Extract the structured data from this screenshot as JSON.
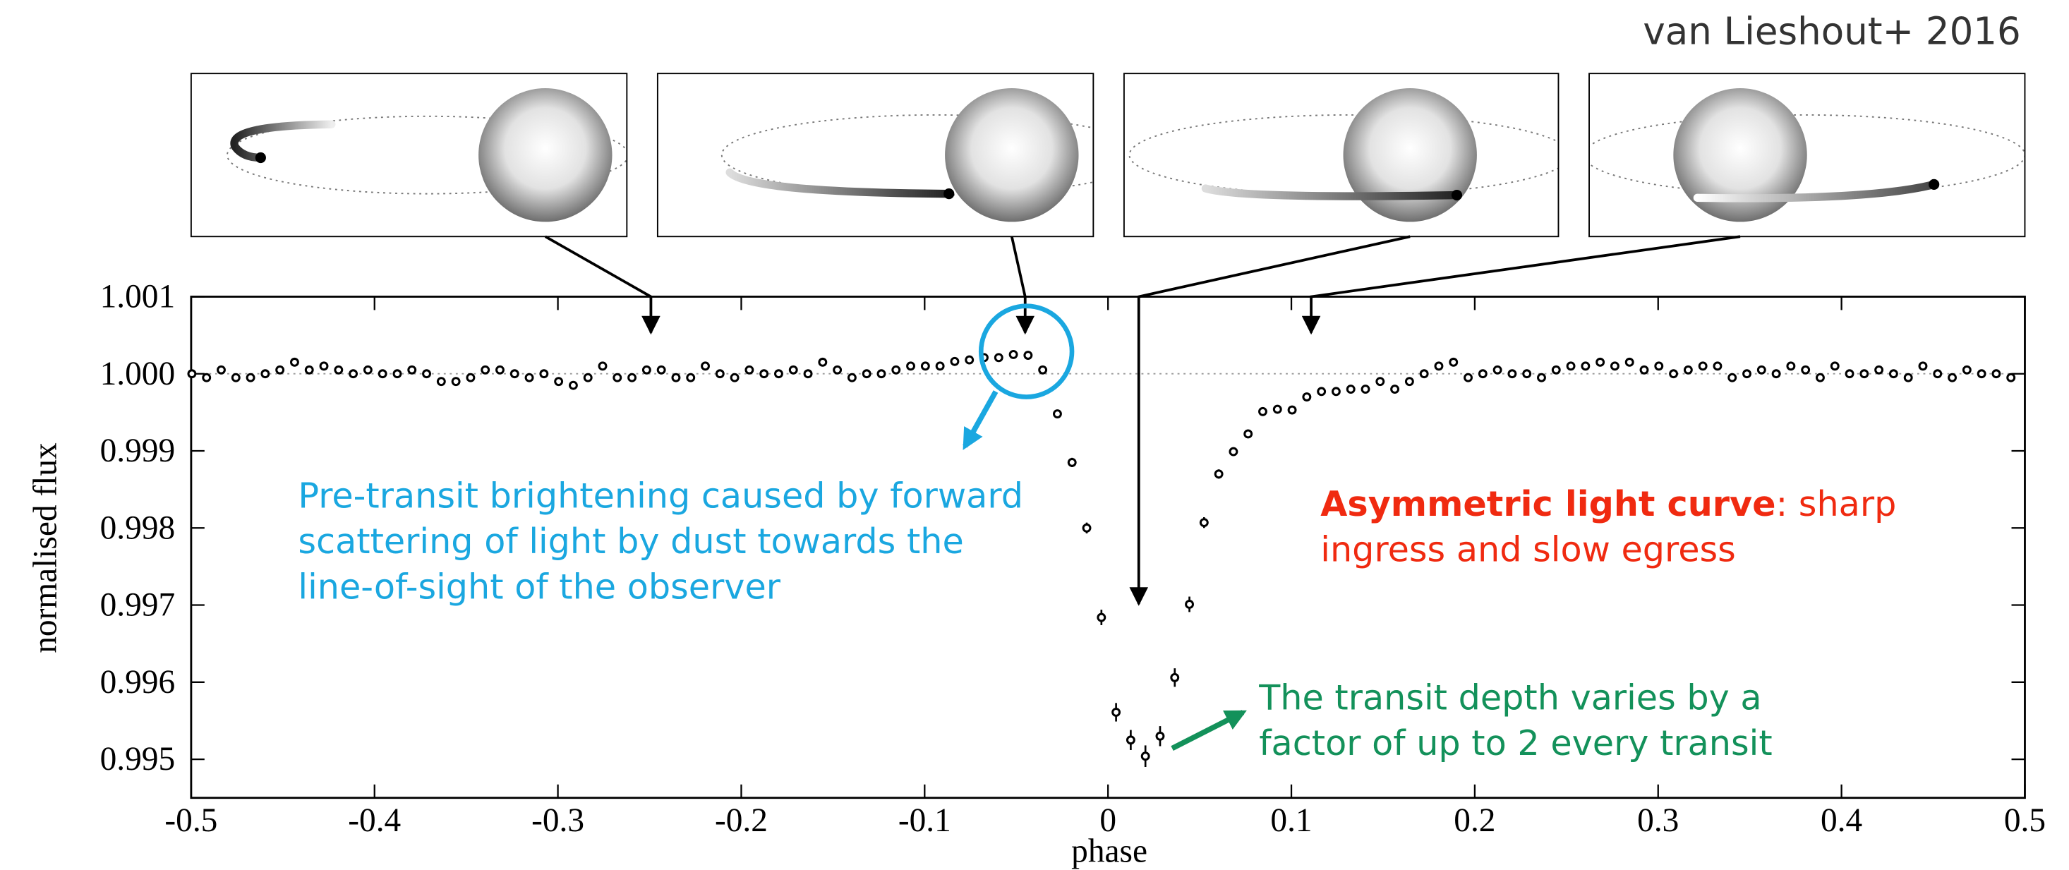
{
  "chart_data": {
    "type": "scatter",
    "source": "van Lieshout+ 2016",
    "xlabel": "phase",
    "ylabel": "normalised flux",
    "xlim": [
      -0.5,
      0.5
    ],
    "ylim": [
      0.9945,
      1.001
    ],
    "xticks": [
      -0.5,
      -0.4,
      -0.3,
      -0.2,
      -0.1,
      0,
      0.1,
      0.2,
      0.3,
      0.4,
      0.5
    ],
    "yticks": [
      0.995,
      0.996,
      0.997,
      0.998,
      0.999,
      {
        "value": 1,
        "label": "1.000"
      },
      1.001
    ],
    "reference_line": 1,
    "color": "#000000",
    "x": [
      -0.4996,
      -0.4916,
      -0.4836,
      -0.4756,
      -0.4676,
      -0.4596,
      -0.4516,
      -0.4436,
      -0.4356,
      -0.4276,
      -0.4196,
      -0.4116,
      -0.4036,
      -0.3956,
      -0.3876,
      -0.3796,
      -0.3716,
      -0.3636,
      -0.3556,
      -0.3476,
      -0.3396,
      -0.3316,
      -0.3236,
      -0.3156,
      -0.3076,
      -0.2996,
      -0.2916,
      -0.2836,
      -0.2756,
      -0.2676,
      -0.2596,
      -0.2516,
      -0.2436,
      -0.2356,
      -0.2276,
      -0.2196,
      -0.2116,
      -0.2036,
      -0.1956,
      -0.1876,
      -0.1796,
      -0.1716,
      -0.1636,
      -0.1556,
      -0.1476,
      -0.1396,
      -0.1316,
      -0.1236,
      -0.1156,
      -0.1076,
      -0.0996,
      -0.0916,
      -0.0836,
      -0.0756,
      -0.0676,
      -0.0596,
      -0.0516,
      -0.0436,
      -0.0356,
      -0.0276,
      -0.0196,
      -0.0116,
      -0.0036,
      0.0044,
      0.0124,
      0.0204,
      0.0284,
      0.0364,
      0.0444,
      0.0524,
      0.0604,
      0.0684,
      0.0764,
      0.0844,
      0.0924,
      0.1004,
      0.1084,
      0.1164,
      0.1244,
      0.1324,
      0.1404,
      0.1484,
      0.1564,
      0.1644,
      0.1724,
      0.1804,
      0.1884,
      0.1964,
      0.2044,
      0.2124,
      0.2204,
      0.2284,
      0.2364,
      0.2444,
      0.2524,
      0.2604,
      0.2684,
      0.2764,
      0.2844,
      0.2924,
      0.3004,
      0.3084,
      0.3164,
      0.3244,
      0.3324,
      0.3404,
      0.3484,
      0.3564,
      0.3644,
      0.3724,
      0.3804,
      0.3884,
      0.3964,
      0.4044,
      0.4124,
      0.4204,
      0.4284,
      0.4364,
      0.4444,
      0.4524,
      0.4604,
      0.4684,
      0.4764,
      0.4844,
      0.4924
    ],
    "values": [
      1.0,
      0.99995,
      1.00005,
      0.99995,
      0.99995,
      1.0,
      1.00005,
      1.00015,
      1.00005,
      1.0001,
      1.00005,
      1.0,
      1.00005,
      1.0,
      1.0,
      1.00005,
      1.0,
      0.9999,
      0.9999,
      0.99995,
      1.00005,
      1.00005,
      1.0,
      0.99995,
      1.0,
      0.9999,
      0.99985,
      0.99995,
      1.0001,
      0.99995,
      0.99995,
      1.00005,
      1.00005,
      0.99995,
      0.99995,
      1.0001,
      1.0,
      0.99995,
      1.00005,
      1.0,
      1.0,
      1.00005,
      1.0,
      1.00015,
      1.00005,
      0.99995,
      1.0,
      1.0,
      1.00005,
      1.0001,
      1.0001,
      1.0001,
      1.00016,
      1.00018,
      1.00021,
      1.00021,
      1.00025,
      1.00024,
      1.00005,
      0.99948,
      0.99885,
      0.998,
      0.99684,
      0.99561,
      0.99525,
      0.99504,
      0.9953,
      0.99606,
      0.99701,
      0.99807,
      0.9987,
      0.99899,
      0.99922,
      0.99951,
      0.99954,
      0.99953,
      0.9997,
      0.99977,
      0.99977,
      0.9998,
      0.9998,
      0.9999,
      0.9998,
      0.9999,
      1.0,
      1.0001,
      1.00015,
      0.99995,
      1.0,
      1.00005,
      1.0,
      1.0,
      0.99995,
      1.00005,
      1.0001,
      1.0001,
      1.00015,
      1.0001,
      1.00015,
      1.00005,
      1.0001,
      1.0,
      1.00005,
      1.0001,
      1.0001,
      0.99995,
      1.0,
      1.00005,
      1.0,
      1.0001,
      1.00005,
      0.99995,
      1.0001,
      1.0,
      1.0,
      1.00005,
      1.0,
      0.99995,
      1.0001,
      1.0,
      0.99995,
      1.00005,
      1.0,
      1.0,
      0.99995
    ],
    "errors": [
      3e-05,
      3e-05,
      3e-05,
      3e-05,
      3e-05,
      3e-05,
      3e-05,
      3e-05,
      3e-05,
      3e-05,
      3e-05,
      3e-05,
      3e-05,
      3e-05,
      3e-05,
      3e-05,
      3e-05,
      3e-05,
      3e-05,
      3e-05,
      3e-05,
      3e-05,
      3e-05,
      3e-05,
      3e-05,
      3e-05,
      3e-05,
      3e-05,
      3e-05,
      3e-05,
      3e-05,
      3e-05,
      3e-05,
      3e-05,
      3e-05,
      3e-05,
      3e-05,
      3e-05,
      3e-05,
      3e-05,
      3e-05,
      3e-05,
      3e-05,
      3e-05,
      3e-05,
      3e-05,
      3e-05,
      3e-05,
      3e-05,
      3e-05,
      3e-05,
      3e-05,
      3e-05,
      3e-05,
      3e-05,
      3e-05,
      3e-05,
      3e-05,
      4e-05,
      5e-05,
      6e-05,
      7e-05,
      0.0001,
      0.00012,
      0.00013,
      0.00014,
      0.00013,
      0.00012,
      0.0001,
      7e-05,
      6e-05,
      5e-05,
      4e-05,
      3e-05,
      3e-05,
      3e-05,
      3e-05,
      3e-05,
      3e-05,
      3e-05,
      3e-05,
      3e-05,
      3e-05,
      3e-05,
      3e-05,
      3e-05,
      3e-05,
      3e-05,
      3e-05,
      3e-05,
      3e-05,
      3e-05,
      3e-05,
      3e-05,
      3e-05,
      3e-05,
      3e-05,
      3e-05,
      3e-05,
      3e-05,
      3e-05,
      3e-05,
      3e-05,
      3e-05,
      3e-05,
      3e-05,
      3e-05,
      3e-05,
      3e-05,
      3e-05,
      3e-05,
      3e-05,
      3e-05,
      3e-05,
      3e-05,
      3e-05,
      3e-05,
      3e-05,
      3e-05,
      3e-05,
      3e-05,
      3e-05,
      3e-05,
      3e-05,
      3e-05
    ],
    "annotations": {
      "scattering": {
        "color": "#1aa7e0",
        "lines": [
          "Pre-transit brightening caused by forward",
          "scattering of light by dust towards the",
          "line-of-sight of the observer"
        ]
      },
      "asymmetry": {
        "color": "#f02a10",
        "emphasis": "Asymmetric light curve",
        "lines": [
          ": sharp",
          "ingress and slow egress"
        ]
      },
      "depth": {
        "color": "#13915a",
        "lines": [
          "The transit depth varies by a",
          "factor of up to 2 every transit"
        ]
      }
    }
  }
}
